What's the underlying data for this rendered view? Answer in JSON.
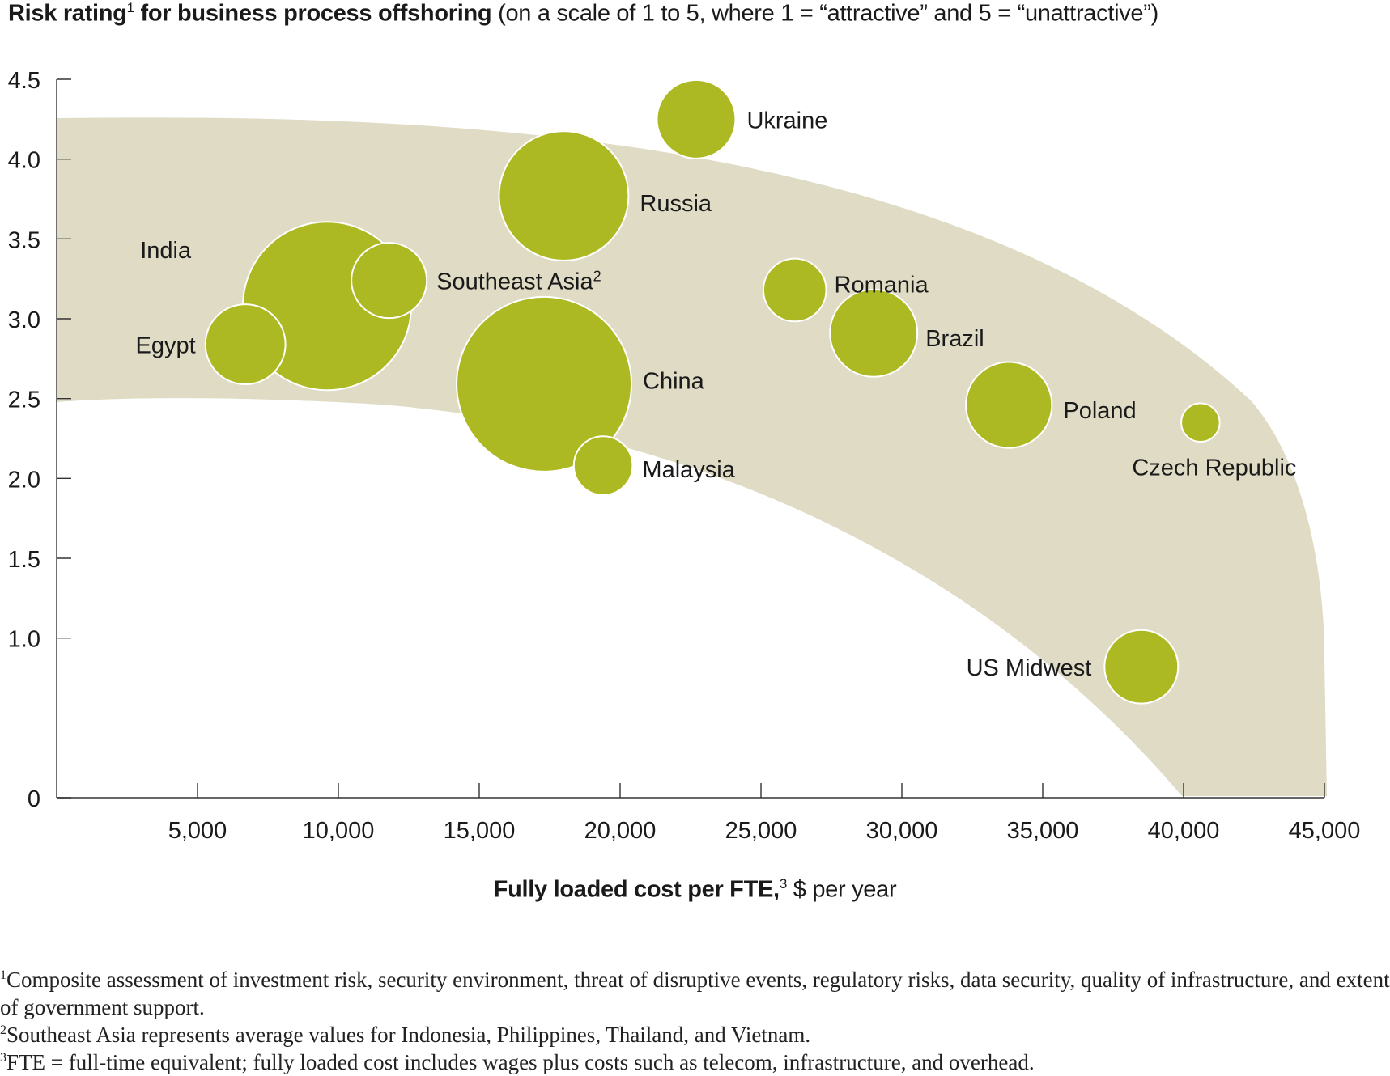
{
  "title": {
    "bold_text": "Risk rating",
    "bold_sup": "1",
    "bold_text_2": " for business process offshoring",
    "regular_text": " (on a scale of 1 to 5, where 1 = “attractive” and 5 = “unattractive”)"
  },
  "x_axis_label": {
    "bold_text": "Fully loaded cost per FTE,",
    "sup": "3",
    "regular_text": " $ per year"
  },
  "footnotes": [
    {
      "mark": "1",
      "text": "Composite assessment of investment risk, security environment, threat of disruptive events, regulatory risks, data security, quality of infrastructure, and extent of government support."
    },
    {
      "mark": "2",
      "text": "Southeast Asia represents average values for Indonesia, Philippines, Thailand, and Vietnam."
    },
    {
      "mark": "3",
      "text": "FTE = full-time equivalent; fully loaded cost includes wages plus costs such as telecom, infrastructure, and overhead."
    }
  ],
  "colors": {
    "bubble": "#adb922",
    "band": "#dfdbc4",
    "axis": "#333333"
  },
  "chart_data": {
    "type": "scatter",
    "variant": "bubble",
    "xlim": [
      0,
      45000
    ],
    "ylim": [
      0,
      4.5
    ],
    "x_ticks": [
      5000,
      10000,
      15000,
      20000,
      25000,
      30000,
      35000,
      40000,
      45000
    ],
    "x_tick_labels": [
      "5,000",
      "10,000",
      "15,000",
      "20,000",
      "25,000",
      "30,000",
      "35,000",
      "40,000",
      "45,000"
    ],
    "y_ticks": [
      0,
      1.0,
      1.5,
      2.0,
      2.5,
      3.0,
      3.5,
      4.0,
      4.5
    ],
    "y_tick_labels": [
      "0",
      "1.0",
      "1.5",
      "2.0",
      "2.5",
      "3.0",
      "3.5",
      "4.0",
      "4.5"
    ],
    "grid": false,
    "shaded_band": true,
    "points": [
      {
        "label": "Ukraine",
        "x": 22700,
        "y": 4.25,
        "size": 2.5
      },
      {
        "label": "Russia",
        "x": 18000,
        "y": 3.77,
        "size": 6.8
      },
      {
        "label": "India",
        "x": 9600,
        "y": 3.08,
        "size": 11.5
      },
      {
        "label": "Southeast Asia",
        "label_sup": "2",
        "x": 11800,
        "y": 3.24,
        "size": 2.3
      },
      {
        "label": "Romania",
        "x": 26200,
        "y": 3.18,
        "size": 1.6
      },
      {
        "label": "Brazil",
        "x": 29000,
        "y": 2.91,
        "size": 3.1
      },
      {
        "label": "Egypt",
        "x": 6700,
        "y": 2.84,
        "size": 2.6
      },
      {
        "label": "China",
        "x": 17300,
        "y": 2.59,
        "size": 12.4
      },
      {
        "label": "Poland",
        "x": 33800,
        "y": 2.46,
        "size": 3.0
      },
      {
        "label": "Czech Republic",
        "x": 40600,
        "y": 2.35,
        "size": 0.6
      },
      {
        "label": "Malaysia",
        "x": 19400,
        "y": 2.08,
        "size": 1.4
      },
      {
        "label": "US Midwest",
        "x": 38500,
        "y": 0.82,
        "size": 2.2
      }
    ]
  }
}
